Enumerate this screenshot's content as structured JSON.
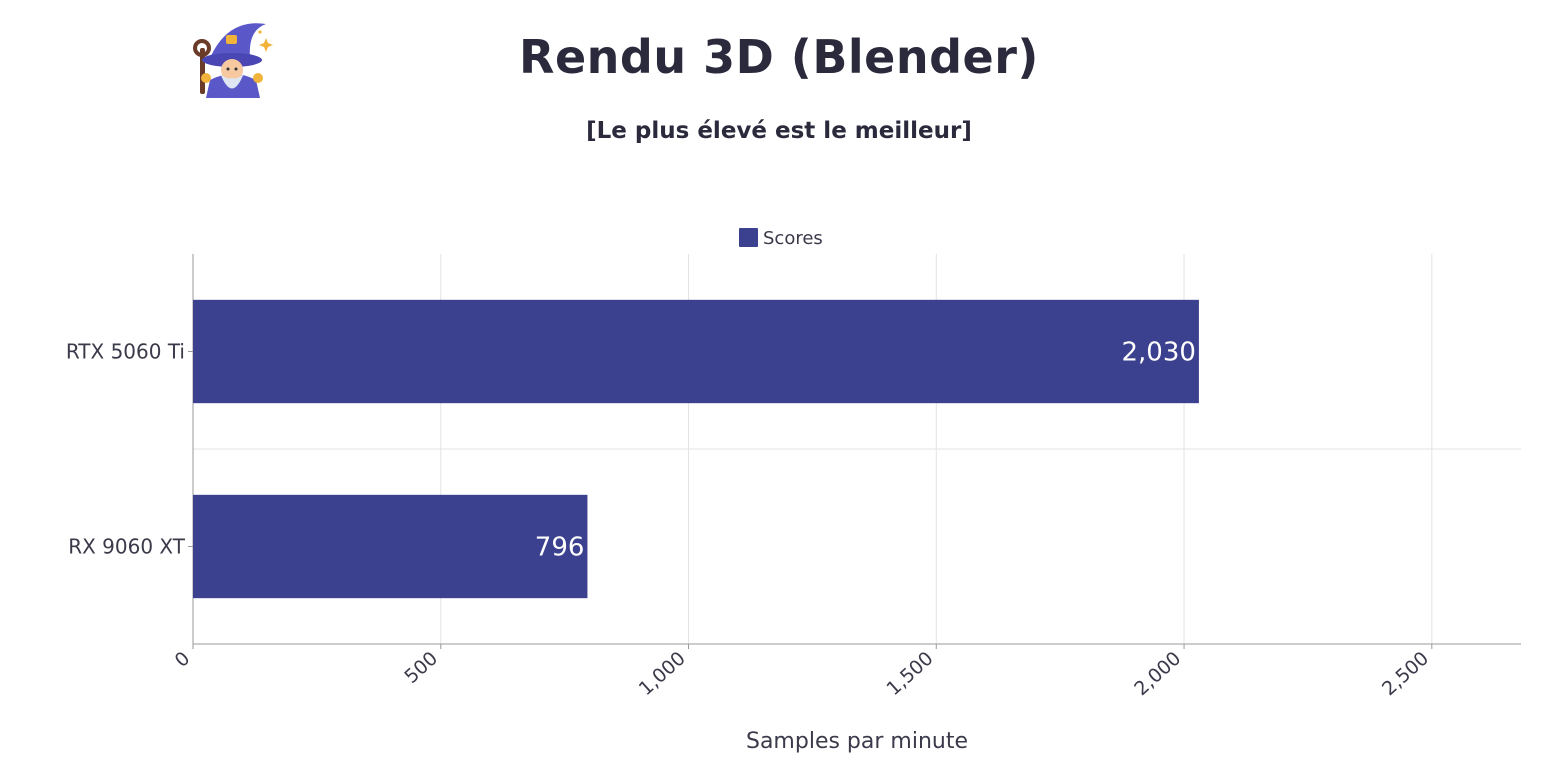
{
  "header": {
    "title": "Rendu 3D (Blender)",
    "subtitle": "[Le plus élevé est le meilleur]",
    "logo_icon": "wizard-icon"
  },
  "colors": {
    "bar": "#3b418e",
    "grid": "#e3e3e3",
    "axis": "#9a9a9a"
  },
  "chart_data": {
    "type": "bar",
    "orientation": "horizontal",
    "categories": [
      "RTX 5060 Ti",
      "RX 9060 XT"
    ],
    "series": [
      {
        "name": "Scores",
        "values": [
          2030,
          796
        ]
      }
    ],
    "value_labels": [
      "2,030",
      "796"
    ],
    "xticks": [
      0,
      500,
      1000,
      1500,
      2000,
      2500
    ],
    "xtick_labels": [
      "0",
      "500",
      "1,000",
      "1,500",
      "2,000",
      "2,500"
    ],
    "xlim": [
      0,
      2680
    ],
    "xlabel": "Samples par minute",
    "ylabel": "",
    "legend": "top-center",
    "grid": true
  }
}
